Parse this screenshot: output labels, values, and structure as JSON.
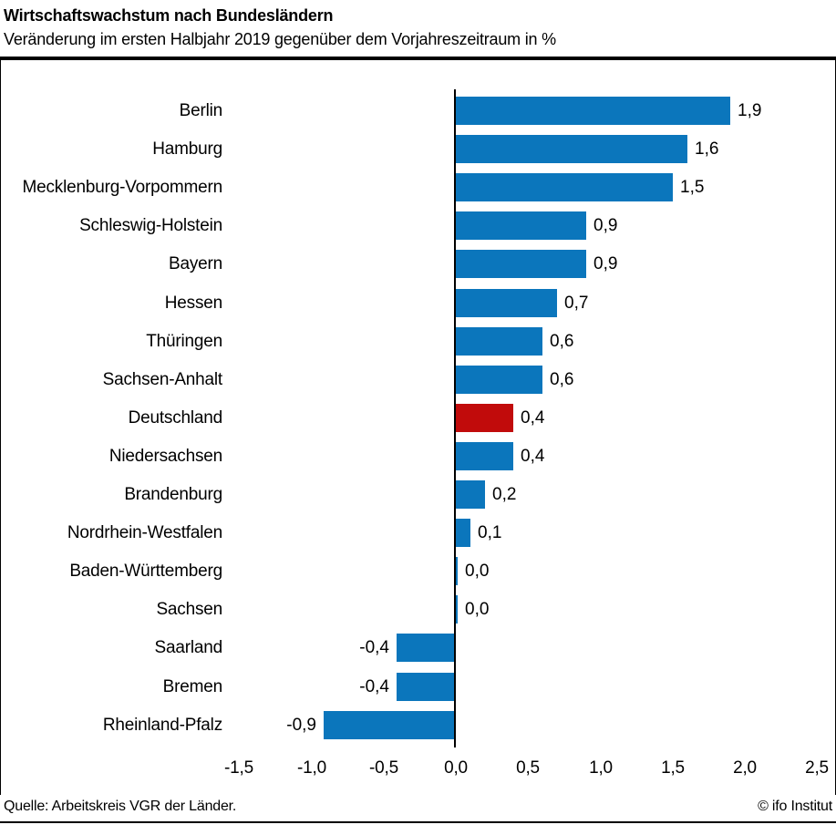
{
  "header": {
    "title": "Wirtschaftswachstum nach Bundesländern",
    "subtitle": "Veränderung im ersten Halbjahr 2019 gegenüber dem Vorjahreszeitraum in %"
  },
  "footer": {
    "source": "Quelle: Arbeitskreis VGR der Länder.",
    "credit": "© ifo Institut"
  },
  "chart_data": {
    "type": "bar",
    "orientation": "horizontal",
    "title": "Wirtschaftswachstum nach Bundesländern",
    "subtitle": "Veränderung im ersten Halbjahr 2019 gegenüber dem Vorjahreszeitraum in %",
    "categories": [
      "Berlin",
      "Hamburg",
      "Mecklenburg-Vorpommern",
      "Schleswig-Holstein",
      "Bayern",
      "Hessen",
      "Thüringen",
      "Sachsen-Anhalt",
      "Deutschland",
      "Niedersachsen",
      "Brandenburg",
      "Nordrhein-Westfalen",
      "Baden-Württemberg",
      "Sachsen",
      "Saarland",
      "Bremen",
      "Rheinland-Pfalz"
    ],
    "values": [
      1.9,
      1.6,
      1.5,
      0.9,
      0.9,
      0.7,
      0.6,
      0.6,
      0.4,
      0.4,
      0.2,
      0.1,
      0.0,
      0.0,
      -0.4,
      -0.4,
      -0.9
    ],
    "value_labels": [
      "1,9",
      "1,6",
      "1,5",
      "0,9",
      "0,9",
      "0,7",
      "0,6",
      "0,6",
      "0,4",
      "0,4",
      "0,2",
      "0,1",
      "0,0",
      "0,0",
      "-0,4",
      "-0,4",
      "-0,9"
    ],
    "highlight_index": 8,
    "highlight_category": "Deutschland",
    "colors": {
      "bar": "#0b76bc",
      "highlight": "#c10b0b",
      "axis": "#000000"
    },
    "xlabel": "",
    "ylabel": "",
    "xlim": [
      -1.5,
      2.5
    ],
    "x_ticks": [
      "-1,5",
      "-1,0",
      "-0,5",
      "0,0",
      "0,5",
      "1,0",
      "1,5",
      "2,0",
      "2,5"
    ],
    "x_tick_values": [
      -1.5,
      -1.0,
      -0.5,
      0.0,
      0.5,
      1.0,
      1.5,
      2.0,
      2.5
    ],
    "grid": false,
    "legend": "none"
  }
}
